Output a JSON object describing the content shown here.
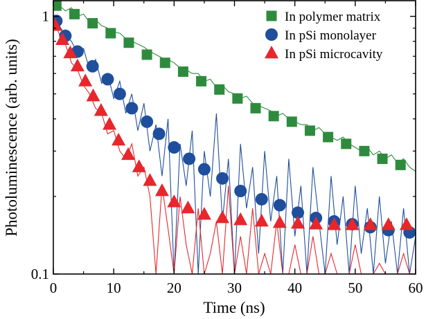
{
  "chart_data": {
    "type": "scatter",
    "title": "",
    "xlabel": "Time (ns)",
    "ylabel": "Photoluminescence (arb. units)",
    "xlim": [
      0,
      60
    ],
    "ylim": [
      0.1,
      1.15
    ],
    "yscale": "log",
    "x_ticks": [
      0,
      10,
      20,
      30,
      40,
      50,
      60
    ],
    "x_tick_labels": [
      "0",
      "10",
      "20",
      "30",
      "40",
      "50",
      "60"
    ],
    "y_ticks": [
      0.1,
      1
    ],
    "y_tick_labels": [
      "0.1",
      "1"
    ],
    "grid": false,
    "legend_position": "top-right",
    "series": [
      {
        "name": "In polymer matrix",
        "marker": "square",
        "color": "#2e8b3e",
        "x": [
          0.5,
          3.5,
          6.5,
          9.5,
          12.5,
          15.5,
          18.5,
          21.5,
          24.5,
          27.5,
          30.5,
          33.5,
          36.5,
          39.5,
          42.5,
          45.5,
          48.5,
          51.5,
          54.5,
          57.5
        ],
        "y": [
          1.1,
          1.02,
          0.94,
          0.86,
          0.79,
          0.71,
          0.66,
          0.61,
          0.56,
          0.52,
          0.48,
          0.44,
          0.41,
          0.39,
          0.36,
          0.34,
          0.32,
          0.3,
          0.28,
          0.265
        ],
        "trace": {
          "x": [
            0,
            1,
            2,
            3,
            4,
            5,
            6,
            7,
            8,
            9,
            10,
            11,
            12,
            13,
            14,
            15,
            16,
            17,
            18,
            19,
            20,
            21,
            22,
            23,
            24,
            25,
            26,
            27,
            28,
            29,
            30,
            31,
            32,
            33,
            34,
            35,
            36,
            37,
            38,
            39,
            40,
            41,
            42,
            43,
            44,
            45,
            46,
            47,
            48,
            49,
            50,
            51,
            52,
            53,
            54,
            55,
            56,
            57,
            58,
            59,
            60
          ],
          "y": [
            1.12,
            1.1,
            1.05,
            1.08,
            1.0,
            1.02,
            0.95,
            0.97,
            0.92,
            0.9,
            0.87,
            0.86,
            0.82,
            0.8,
            0.78,
            0.76,
            0.73,
            0.71,
            0.69,
            0.68,
            0.66,
            0.63,
            0.62,
            0.6,
            0.6,
            0.56,
            0.57,
            0.53,
            0.54,
            0.51,
            0.5,
            0.48,
            0.49,
            0.46,
            0.45,
            0.44,
            0.43,
            0.41,
            0.42,
            0.4,
            0.39,
            0.38,
            0.38,
            0.36,
            0.37,
            0.35,
            0.34,
            0.33,
            0.34,
            0.32,
            0.31,
            0.3,
            0.31,
            0.29,
            0.3,
            0.28,
            0.29,
            0.27,
            0.28,
            0.26,
            0.25
          ]
        }
      },
      {
        "name": "In pSi monolayer",
        "marker": "circle",
        "color": "#1f4e9c",
        "x": [
          0.5,
          2.0,
          4.0,
          6.5,
          9.0,
          11.0,
          13.0,
          15.5,
          17.5,
          20.0,
          22.5,
          25.0,
          28.0,
          31.0,
          34.5,
          37.5,
          40.5,
          43.5,
          46.5,
          49.5,
          52.5,
          55.5,
          59.0
        ],
        "y": [
          0.96,
          0.84,
          0.73,
          0.64,
          0.57,
          0.5,
          0.44,
          0.39,
          0.35,
          0.31,
          0.28,
          0.255,
          0.235,
          0.21,
          0.195,
          0.185,
          0.173,
          0.165,
          0.16,
          0.156,
          0.152,
          0.148,
          0.145
        ],
        "trace": {
          "x": [
            0,
            1,
            2,
            3,
            4,
            5,
            6,
            7,
            8,
            9,
            10,
            11,
            12,
            13,
            14,
            15,
            16,
            17,
            18,
            19,
            20,
            21,
            22,
            23,
            24,
            25,
            26,
            27,
            28,
            29,
            30,
            31,
            32,
            33,
            34,
            35,
            36,
            37,
            38,
            39,
            40,
            41,
            42,
            43,
            44,
            45,
            46,
            47,
            48,
            49,
            50,
            51,
            52,
            53,
            54,
            55,
            56,
            57,
            58,
            59,
            60
          ],
          "y": [
            1.0,
            0.92,
            0.84,
            0.8,
            0.72,
            0.75,
            0.62,
            0.68,
            0.55,
            0.6,
            0.48,
            0.56,
            0.42,
            0.5,
            0.36,
            0.46,
            0.3,
            0.38,
            0.24,
            0.4,
            0.1,
            0.32,
            0.22,
            0.36,
            0.1,
            0.3,
            0.2,
            0.42,
            0.16,
            0.28,
            0.1,
            0.32,
            0.18,
            0.26,
            0.12,
            0.3,
            0.16,
            0.24,
            0.1,
            0.28,
            0.14,
            0.22,
            0.1,
            0.26,
            0.16,
            0.1,
            0.24,
            0.13,
            0.2,
            0.1,
            0.22,
            0.12,
            0.18,
            0.1,
            0.2,
            0.11,
            0.16,
            0.1,
            0.18,
            0.1,
            0.14
          ]
        }
      },
      {
        "name": "In pSi microcavity",
        "marker": "triangle",
        "color": "#e8262c",
        "x": [
          0.3,
          1.5,
          2.8,
          4.0,
          5.3,
          6.6,
          7.9,
          9.3,
          10.8,
          12.4,
          14.2,
          16.0,
          18.0,
          20.0,
          22.3,
          25.0,
          28.0,
          31.0,
          34.5,
          37.5,
          40.5,
          43.5,
          46.5,
          49.5,
          52.5,
          55.5,
          58.5
        ],
        "y": [
          0.92,
          0.81,
          0.72,
          0.64,
          0.56,
          0.49,
          0.43,
          0.38,
          0.33,
          0.29,
          0.26,
          0.23,
          0.21,
          0.19,
          0.18,
          0.17,
          0.165,
          0.162,
          0.16,
          0.158,
          0.157,
          0.156,
          0.155,
          0.155,
          0.155,
          0.155,
          0.155
        ],
        "trace": {
          "x": [
            0,
            1,
            2,
            3,
            4,
            5,
            6,
            7,
            8,
            9,
            10,
            11,
            12,
            13,
            14,
            15,
            16,
            17,
            18,
            19,
            20,
            21,
            22,
            23,
            24,
            25,
            26,
            27,
            28,
            29,
            30,
            31,
            32,
            33,
            34,
            35,
            36,
            37,
            38,
            39,
            40,
            41,
            42,
            43,
            44,
            45,
            46,
            47,
            48,
            49,
            50,
            51,
            52,
            53,
            54,
            55,
            56,
            57,
            58,
            59,
            60
          ],
          "y": [
            0.98,
            0.85,
            0.78,
            0.66,
            0.62,
            0.54,
            0.5,
            0.44,
            0.42,
            0.35,
            0.36,
            0.3,
            0.28,
            0.32,
            0.24,
            0.26,
            0.2,
            0.1,
            0.22,
            0.15,
            0.1,
            0.2,
            0.13,
            0.1,
            0.18,
            0.1,
            0.12,
            0.16,
            0.1,
            0.22,
            0.1,
            0.14,
            0.1,
            0.18,
            0.1,
            0.12,
            0.1,
            0.16,
            0.1,
            0.1,
            0.13,
            0.1,
            0.1,
            0.14,
            0.1,
            0.1,
            0.12,
            0.1,
            0.1,
            0.1,
            0.13,
            0.1,
            0.1,
            0.1,
            0.11,
            0.1,
            0.1,
            0.1,
            0.12,
            0.1,
            0.1
          ]
        }
      }
    ]
  }
}
